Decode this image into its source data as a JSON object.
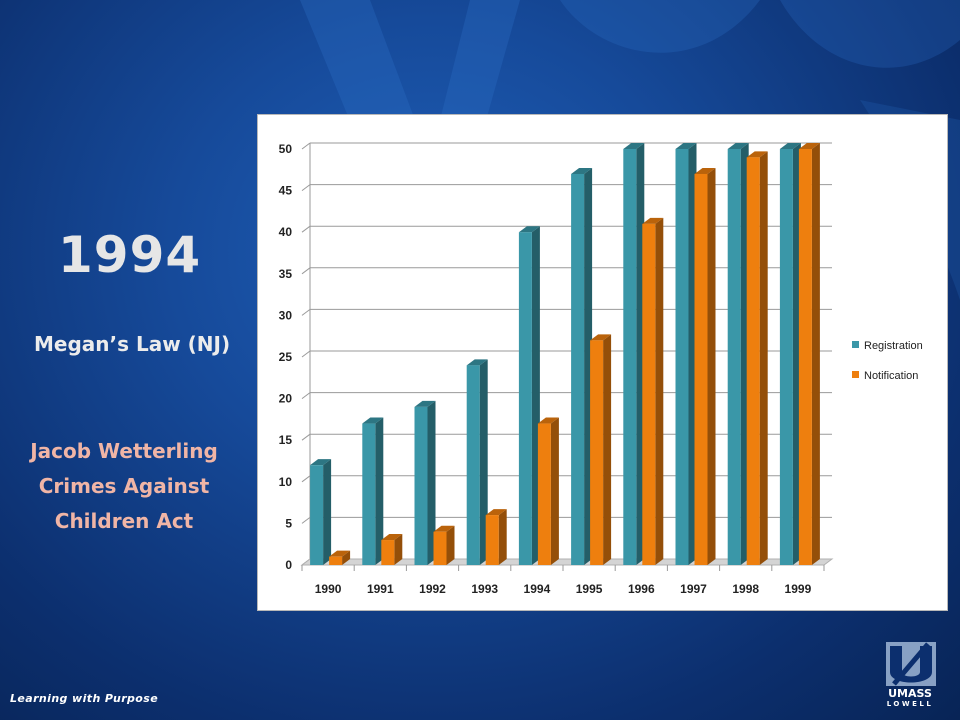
{
  "slide": {
    "year_title": "1994",
    "law_1": "Megan’s Law (NJ)",
    "law_2_lines": [
      "Jacob Wetterling",
      "Crimes Against",
      "Children Act"
    ],
    "footer": "Learning with Purpose",
    "logo_text": "UMASS",
    "logo_sub": "LOWELL"
  },
  "colors": {
    "registration": "#3a97a8",
    "notification": "#ee7f0e",
    "law_2_text": "#f0b5a6"
  },
  "chart_data": {
    "type": "bar",
    "categories": [
      "1990",
      "1991",
      "1992",
      "1993",
      "1994",
      "1995",
      "1996",
      "1997",
      "1998",
      "1999"
    ],
    "series": [
      {
        "name": "Registration",
        "values": [
          12,
          17,
          19,
          24,
          40,
          47,
          50,
          50,
          50,
          50
        ]
      },
      {
        "name": "Notification",
        "values": [
          1,
          3,
          4,
          6,
          17,
          27,
          41,
          47,
          49,
          50
        ]
      }
    ],
    "yticks": [
      "0",
      "5",
      "10",
      "15",
      "20",
      "25",
      "30",
      "35",
      "40",
      "45",
      "50"
    ],
    "ylim": [
      0,
      50
    ],
    "grid": true,
    "legend": "right",
    "style": "3d-column"
  }
}
